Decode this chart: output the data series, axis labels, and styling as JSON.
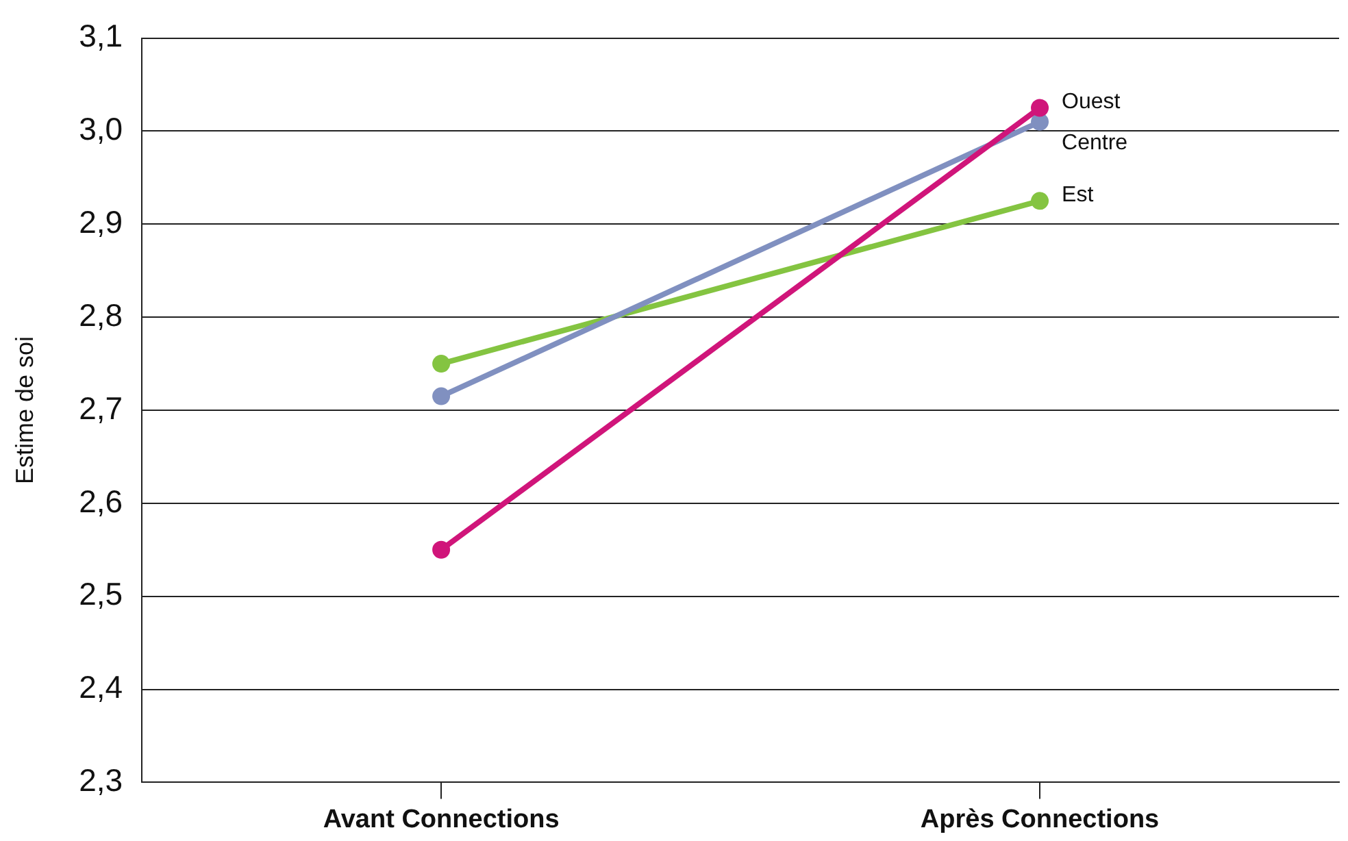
{
  "chart_data": {
    "type": "line",
    "ylabel": "Estime de soi",
    "categories": [
      "Avant Connections",
      "Après Connections"
    ],
    "series": [
      {
        "name": "Ouest",
        "color": "#d0157a",
        "values": [
          2.55,
          3.025
        ]
      },
      {
        "name": "Centre",
        "color": "#8090c0",
        "values": [
          2.715,
          3.01
        ]
      },
      {
        "name": "Est",
        "color": "#84c441",
        "values": [
          2.75,
          2.925
        ]
      }
    ],
    "ylim": [
      2.3,
      3.1
    ],
    "yticks": [
      {
        "value": 2.3,
        "label": "2,3"
      },
      {
        "value": 2.4,
        "label": "2,4"
      },
      {
        "value": 2.5,
        "label": "2,5"
      },
      {
        "value": 2.6,
        "label": "2,6"
      },
      {
        "value": 2.7,
        "label": "2,7"
      },
      {
        "value": 2.8,
        "label": "2,8"
      },
      {
        "value": 2.9,
        "label": "2,9"
      },
      {
        "value": 3.0,
        "label": "3,0"
      },
      {
        "value": 3.1,
        "label": "3,1"
      }
    ],
    "grid": "y",
    "legend": false,
    "marker": "circle",
    "line_style": "solid"
  }
}
